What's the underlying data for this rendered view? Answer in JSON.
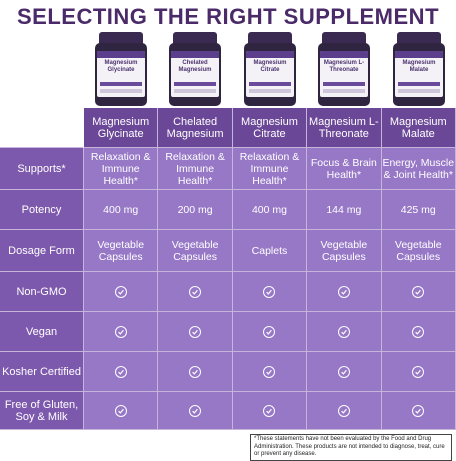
{
  "title": "SELECTING THE RIGHT SUPPLEMENT",
  "products": [
    {
      "bottle_label": "Magnesium Glycinate",
      "header": "Magnesium Glycinate"
    },
    {
      "bottle_label": "Chelated Magnesium",
      "header": "Chelated Magnesium"
    },
    {
      "bottle_label": "Magnesium Citrate",
      "header": "Magnesium Citrate"
    },
    {
      "bottle_label": "Magnesium L-Threonate",
      "header": "Magnesium L-Threonate"
    },
    {
      "bottle_label": "Magnesium Malate",
      "header": "Magnesium Malate"
    }
  ],
  "rows": [
    {
      "label": "Supports*",
      "values": [
        "Relaxation & Immune Health*",
        "Relaxation & Immune Health*",
        "Relaxation & Immune Health*",
        "Focus & Brain Health*",
        "Energy, Muscle & Joint Health*"
      ]
    },
    {
      "label": "Potency",
      "values": [
        "400 mg",
        "200 mg",
        "400 mg",
        "144 mg",
        "425 mg"
      ]
    },
    {
      "label": "Dosage Form",
      "values": [
        "Vegetable Capsules",
        "Vegetable Capsules",
        "Caplets",
        "Vegetable Capsules",
        "Vegetable Capsules"
      ]
    },
    {
      "label": "Non-GMO",
      "checks": [
        true,
        true,
        true,
        true,
        true
      ]
    },
    {
      "label": "Vegan",
      "checks": [
        true,
        true,
        true,
        true,
        true
      ]
    },
    {
      "label": "Kosher Certified",
      "checks": [
        true,
        true,
        true,
        true,
        true
      ]
    },
    {
      "label": "Free of Gluten, Soy & Milk",
      "checks": [
        true,
        true,
        true,
        true,
        true
      ]
    }
  ],
  "footnote": "*These statements have not been evaluated by the Food and Drug Administration. These products are not intended to diagnose, treat, cure or prevent any disease.",
  "colors": {
    "title": "#4a2a68",
    "header": "#6b4798",
    "label": "#7d59ad",
    "cell": "#9778c7"
  },
  "icons": {
    "check": "check-circle-icon"
  }
}
